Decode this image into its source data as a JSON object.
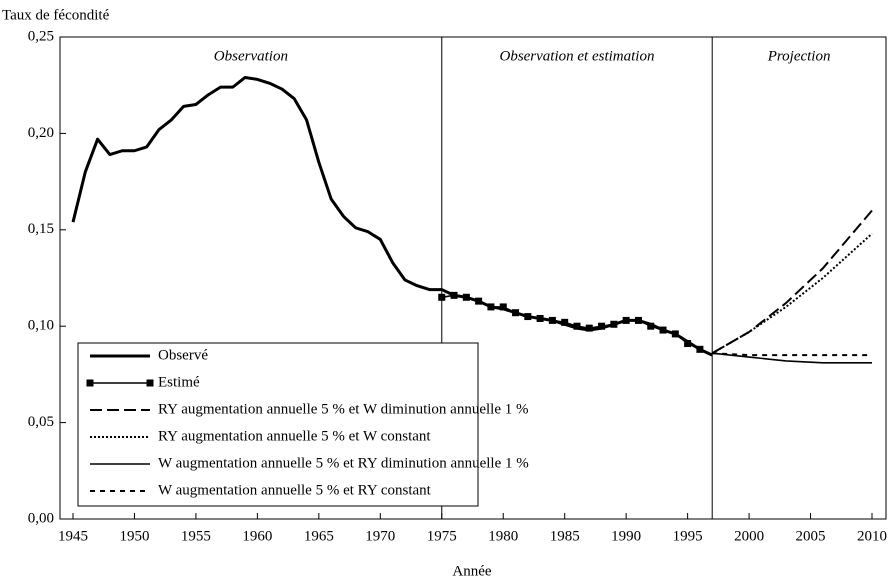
{
  "chart_data": {
    "type": "line",
    "y_label": "Taux de fécondité",
    "x_label": "Année",
    "sections": [
      "Observation",
      "Observation et estimation",
      "Projection"
    ],
    "vlines": [
      1975,
      1997
    ],
    "xlim": [
      1945,
      2010
    ],
    "xticks": [
      1945,
      1950,
      1955,
      1960,
      1965,
      1970,
      1975,
      1980,
      1985,
      1990,
      1995,
      2000,
      2005,
      2010
    ],
    "ylim": [
      0,
      0.25
    ],
    "yticks": [
      {
        "value": 0,
        "label": "0,00"
      },
      {
        "value": 0.05,
        "label": "0,05"
      },
      {
        "value": 0.1,
        "label": "0,10"
      },
      {
        "value": 0.15,
        "label": "0,15"
      },
      {
        "value": 0.2,
        "label": "0,20"
      },
      {
        "value": 0.25,
        "label": "0,25"
      }
    ],
    "legend": "lower left",
    "series": [
      {
        "name": "Observé",
        "color": "#000000",
        "style": "thick",
        "x": [
          1945,
          1946,
          1947,
          1948,
          1949,
          1950,
          1951,
          1952,
          1953,
          1954,
          1955,
          1956,
          1957,
          1958,
          1959,
          1960,
          1961,
          1962,
          1963,
          1964,
          1965,
          1966,
          1967,
          1968,
          1969,
          1970,
          1971,
          1972,
          1973,
          1974,
          1975,
          1976,
          1977,
          1978,
          1979,
          1980,
          1981,
          1982,
          1983,
          1984,
          1985,
          1986,
          1987,
          1988,
          1989,
          1990,
          1991,
          1992,
          1993,
          1994,
          1995,
          1996,
          1997
        ],
        "values": [
          0.154,
          0.18,
          0.197,
          0.189,
          0.191,
          0.191,
          0.193,
          0.202,
          0.207,
          0.214,
          0.215,
          0.22,
          0.224,
          0.224,
          0.229,
          0.228,
          0.226,
          0.223,
          0.218,
          0.207,
          0.185,
          0.166,
          0.157,
          0.151,
          0.149,
          0.145,
          0.133,
          0.124,
          0.121,
          0.119,
          0.119,
          0.116,
          0.115,
          0.113,
          0.11,
          0.109,
          0.107,
          0.105,
          0.104,
          0.103,
          0.101,
          0.099,
          0.098,
          0.099,
          0.101,
          0.103,
          0.103,
          0.101,
          0.098,
          0.096,
          0.092,
          0.088,
          0.085
        ]
      },
      {
        "name": "Estimé",
        "color": "#000000",
        "style": "solid",
        "marker": "square",
        "x": [
          1975,
          1976,
          1977,
          1978,
          1979,
          1980,
          1981,
          1982,
          1983,
          1984,
          1985,
          1986,
          1987,
          1988,
          1989,
          1990,
          1991,
          1992,
          1993,
          1994,
          1995,
          1996
        ],
        "values": [
          0.115,
          0.116,
          0.115,
          0.113,
          0.11,
          0.11,
          0.107,
          0.105,
          0.104,
          0.103,
          0.102,
          0.1,
          0.099,
          0.1,
          0.101,
          0.103,
          0.103,
          0.1,
          0.098,
          0.096,
          0.091,
          0.088
        ]
      },
      {
        "name": "RY augmentation annuelle 5 % et W diminution annuelle 1 %",
        "color": "#000000",
        "style": "dash",
        "x": [
          1997,
          2000,
          2003,
          2006,
          2010
        ],
        "values": [
          0.086,
          0.097,
          0.112,
          0.13,
          0.16
        ]
      },
      {
        "name": "RY augmentation annuelle 5 % et W constant",
        "color": "#000000",
        "style": "dot",
        "x": [
          1997,
          2000,
          2003,
          2006,
          2010
        ],
        "values": [
          0.086,
          0.097,
          0.11,
          0.125,
          0.148
        ]
      },
      {
        "name": "W augmentation annuelle 5 % et RY diminution annuelle 1 %",
        "color": "#000000",
        "style": "solid",
        "x": [
          1997,
          2000,
          2003,
          2006,
          2010
        ],
        "values": [
          0.086,
          0.084,
          0.082,
          0.081,
          0.081
        ]
      },
      {
        "name": "W augmentation annuelle 5 % et RY constant",
        "color": "#000000",
        "style": "shortdash",
        "x": [
          1997,
          2000,
          2003,
          2006,
          2010
        ],
        "values": [
          0.086,
          0.085,
          0.085,
          0.085,
          0.085
        ]
      }
    ]
  }
}
